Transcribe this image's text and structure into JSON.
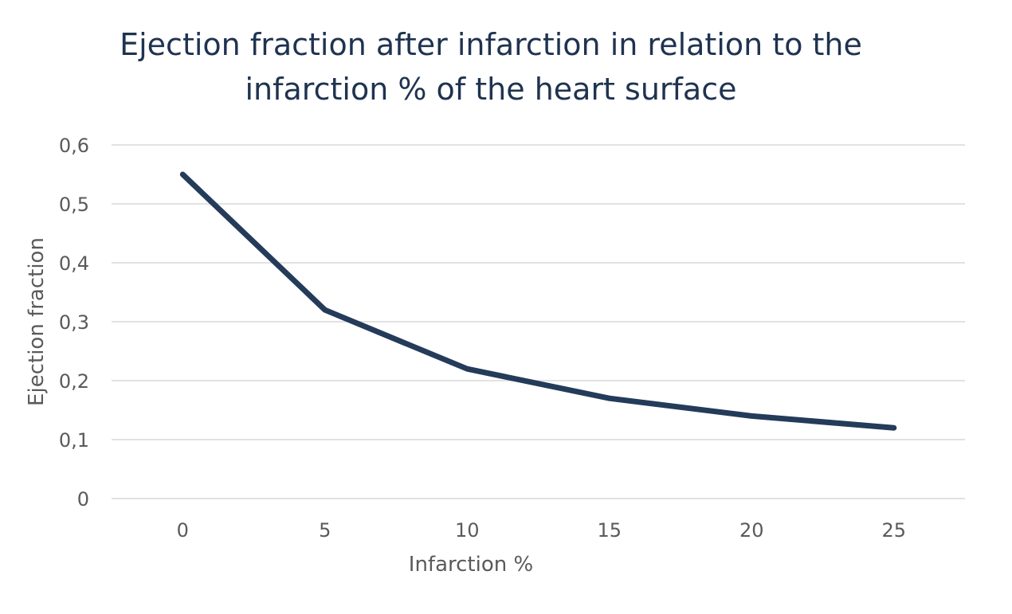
{
  "chart_data": {
    "type": "line",
    "title": [
      "Ejection fraction after infarction in relation to the",
      "infarction % of the heart surface"
    ],
    "xlabel": "Infarction %",
    "ylabel": "Ejection fraction",
    "x": [
      0,
      5,
      10,
      15,
      20,
      25
    ],
    "x_tick_labels": [
      "0",
      "5",
      "10",
      "15",
      "20",
      "25"
    ],
    "y_tick_labels": [
      "0",
      "0,1",
      "0,2",
      "0,3",
      "0,4",
      "0,5",
      "0,6"
    ],
    "ylim": [
      0,
      0.6
    ],
    "grid": true,
    "legend": "none",
    "series": [
      {
        "values": [
          0.55,
          0.32,
          0.22,
          0.17,
          0.14,
          0.12
        ],
        "color": "#243b5a"
      }
    ]
  }
}
